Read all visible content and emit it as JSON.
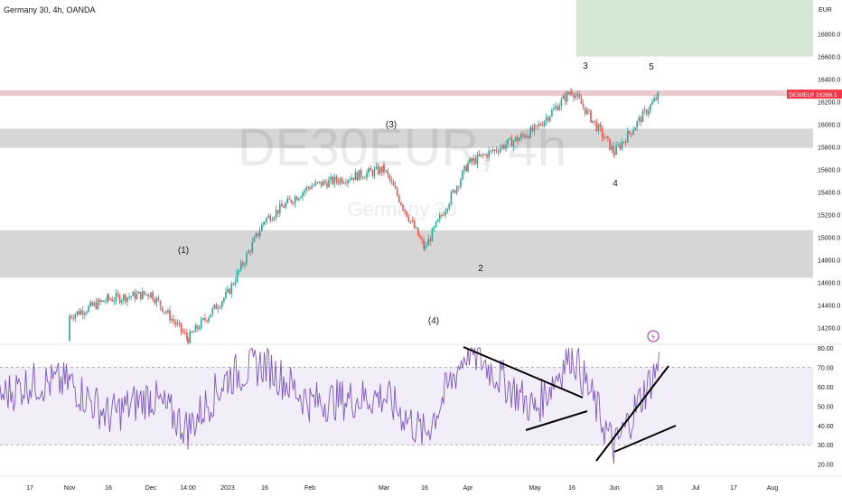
{
  "header": {
    "title": "Germany 30, 4h, OANDA"
  },
  "watermark": {
    "symbol": "DE30EUR, 4h",
    "name": "Germany 30"
  },
  "colors": {
    "up": "#26a69a",
    "down": "#ef5350",
    "rsi": "#7e57c2",
    "band": "#cfcfcf",
    "target": "#d5e8d4",
    "resistance": "#e8c4c6",
    "price_tag": "#f23645"
  },
  "price_axis": {
    "currency": "EUR",
    "ticks": [
      "16800.0",
      "16600.0",
      "16400.0",
      "16200.0",
      "16000.0",
      "15800.0",
      "15600.0",
      "15400.0",
      "15200.0",
      "15000.0",
      "14800.0",
      "14600.0",
      "14400.0",
      "14200.0"
    ],
    "range": [
      14050,
      17100
    ]
  },
  "last_price": {
    "symbol": "DE30EUR",
    "value": "16266.1"
  },
  "rsi_axis": {
    "ticks": [
      "80.00",
      "70.00",
      "60.00",
      "50.00",
      "40.00",
      "30.00",
      "20.00"
    ],
    "range": [
      17,
      81
    ],
    "band": [
      30,
      70
    ]
  },
  "time_axis": {
    "labels": [
      "17",
      "Nov",
      "16",
      "Dec",
      "14:00",
      "2023",
      "16",
      "Feb",
      "Mar",
      "16",
      "Apr",
      "May",
      "16",
      "Jun",
      "16",
      "Jul",
      "17",
      "Aug"
    ]
  },
  "wave_labels": [
    "(1)",
    "(3)",
    "(4)",
    "2",
    "3",
    "4",
    "5"
  ],
  "zones": [
    {
      "name": "upper-support-zone",
      "from": 15790,
      "to": 15960
    },
    {
      "name": "lower-support-zone",
      "from": 14640,
      "to": 15060
    },
    {
      "name": "resistance-line",
      "from": 16250,
      "to": 16300
    },
    {
      "name": "target-zone",
      "from": 16600,
      "to": 17100
    }
  ],
  "chart_data": {
    "type": "candlestick",
    "series": [
      {
        "values": [
          {
            "x": "Nov",
            "y": 14300
          },
          {
            "x": "16",
            "y": 14450
          },
          {
            "x": "Dec",
            "y": 14500
          },
          {
            "x": "14:00",
            "y": 14100
          },
          {
            "x": "2023",
            "y": 14500
          },
          {
            "x": "16",
            "y": 15150
          },
          {
            "x": "Feb",
            "y": 15450
          },
          {
            "x": "Mar",
            "y": 15600
          },
          {
            "x": "16",
            "y": 14900
          },
          {
            "x": "Apr",
            "y": 15650
          },
          {
            "x": "May",
            "y": 15950
          },
          {
            "x": "16",
            "y": 16300
          },
          {
            "x": "Jun",
            "y": 15750
          },
          {
            "x": "16",
            "y": 16266.1
          }
        ]
      }
    ],
    "rsi": [
      {
        "x": "17",
        "y": 62
      },
      {
        "x": "Nov",
        "y": 62
      },
      {
        "x": "16",
        "y": 45
      },
      {
        "x": "Dec",
        "y": 55
      },
      {
        "x": "14:00",
        "y": 38
      },
      {
        "x": "2023",
        "y": 65
      },
      {
        "x": "16",
        "y": 72
      },
      {
        "x": "Feb",
        "y": 52
      },
      {
        "x": "Mar",
        "y": 55
      },
      {
        "x": "16",
        "y": 35
      },
      {
        "x": "Apr",
        "y": 80
      },
      {
        "x": "May",
        "y": 48
      },
      {
        "x": "16",
        "y": 78
      },
      {
        "x": "Jun",
        "y": 28
      },
      {
        "x": "16",
        "y": 72
      }
    ],
    "ylim": [
      14050,
      17100
    ],
    "rsi_ylim": [
      17,
      81
    ],
    "grid": false
  }
}
